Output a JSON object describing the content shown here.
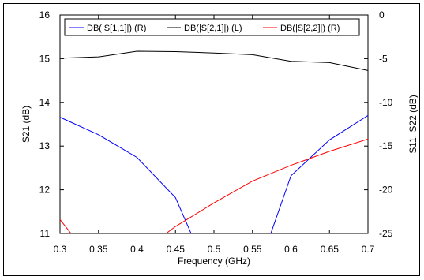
{
  "chart_data": {
    "type": "line",
    "xlabel": "Frequency (GHz)",
    "ylabel_left": "S21 (dB)",
    "ylabel_right": "S11, S22 (dB)",
    "xlim": [
      0.3,
      0.7
    ],
    "ylim_left": [
      11,
      16
    ],
    "ylim_right": [
      -25,
      0
    ],
    "x_ticks": [
      0.3,
      0.35,
      0.4,
      0.45,
      0.5,
      0.55,
      0.6,
      0.65,
      0.7
    ],
    "y_ticks_left": [
      11,
      12,
      13,
      14,
      15,
      16
    ],
    "y_ticks_right": [
      -25,
      -20,
      -15,
      -10,
      -5,
      0
    ],
    "grid": false,
    "legend_position": "top",
    "series": [
      {
        "name": "DB(|S[1,1]|) (R)",
        "axis": "right",
        "color": "#0000ff",
        "x": [
          0.3,
          0.35,
          0.4,
          0.45,
          0.5,
          0.55,
          0.6,
          0.65,
          0.7
        ],
        "y": [
          -11.7,
          -13.7,
          -16.3,
          -20.9,
          -31.0,
          -31.0,
          -18.4,
          -14.3,
          -11.5
        ]
      },
      {
        "name": "DB(|S[2,1]|) (L)",
        "axis": "left",
        "color": "#000000",
        "x": [
          0.3,
          0.35,
          0.4,
          0.45,
          0.5,
          0.55,
          0.6,
          0.65,
          0.7
        ],
        "y": [
          15.01,
          15.04,
          15.17,
          15.16,
          15.13,
          15.09,
          14.94,
          14.91,
          14.73
        ]
      },
      {
        "name": "DB(|S[2,2]|) (R)",
        "axis": "right",
        "color": "#ff0000",
        "x": [
          0.3,
          0.35,
          0.4,
          0.45,
          0.5,
          0.55,
          0.6,
          0.65,
          0.7
        ],
        "y": [
          -23.4,
          -29.0,
          -27.5,
          -24.2,
          -21.5,
          -19.0,
          -17.2,
          -15.6,
          -14.2
        ]
      }
    ]
  }
}
